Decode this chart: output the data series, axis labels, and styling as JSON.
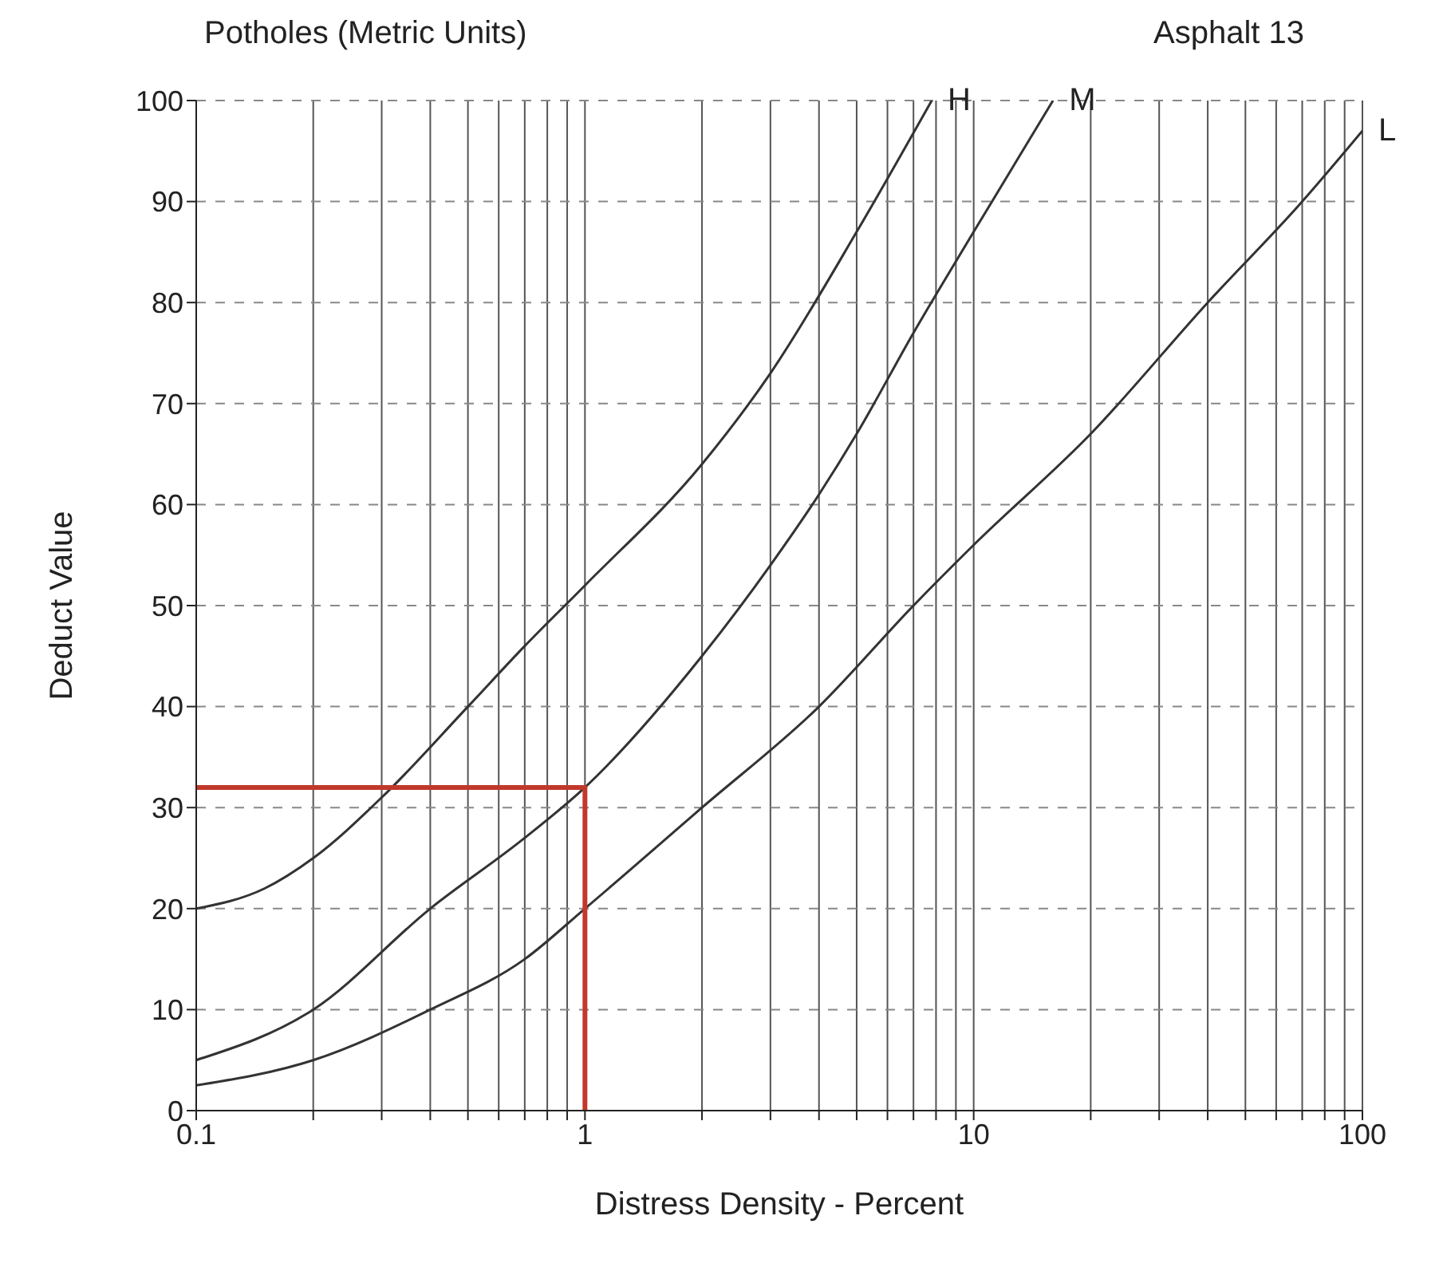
{
  "chart_data": {
    "type": "line",
    "title": "Potholes (Metric Units)",
    "annotations": [
      "Asphalt 13"
    ],
    "xlabel": "Distress Density - Percent",
    "ylabel": "Deduct Value",
    "log": "x",
    "grid": true,
    "marker": "none",
    "line_style": "solid",
    "xlim": [
      0.1,
      100
    ],
    "ylim": [
      0,
      100
    ],
    "xticks": [
      0.1,
      {
        "value": 0.2,
        "label": null
      },
      {
        "value": 0.3,
        "label": null
      },
      {
        "value": 0.4,
        "label": null
      },
      {
        "value": 0.5,
        "label": null
      },
      {
        "value": 0.6,
        "label": null
      },
      {
        "value": 0.7,
        "label": null
      },
      {
        "value": 0.8,
        "label": null
      },
      {
        "value": 0.9,
        "label": null
      },
      1,
      {
        "value": 2,
        "label": null
      },
      {
        "value": 3,
        "label": null
      },
      {
        "value": 4,
        "label": null
      },
      {
        "value": 5,
        "label": null
      },
      {
        "value": 6,
        "label": null
      },
      {
        "value": 7,
        "label": null
      },
      {
        "value": 8,
        "label": null
      },
      {
        "value": 9,
        "label": null
      },
      10,
      {
        "value": 20,
        "label": null
      },
      {
        "value": 30,
        "label": null
      },
      {
        "value": 40,
        "label": null
      },
      {
        "value": 50,
        "label": null
      },
      {
        "value": 60,
        "label": null
      },
      {
        "value": 70,
        "label": null
      },
      {
        "value": 80,
        "label": null
      },
      {
        "value": 90,
        "label": null
      },
      100
    ],
    "yticks": [
      0,
      10,
      20,
      30,
      40,
      50,
      60,
      70,
      80,
      90,
      100
    ],
    "series": [
      {
        "name": "H",
        "color": "#333333",
        "x": [
          0.1,
          0.15,
          0.2,
          0.3,
          0.5,
          0.7,
          1,
          2,
          3,
          5,
          7.8
        ],
        "values": [
          20,
          22,
          25,
          31,
          40,
          46,
          52,
          64,
          73,
          87,
          100
        ]
      },
      {
        "name": "M",
        "color": "#333333",
        "x": [
          0.1,
          0.2,
          0.4,
          0.7,
          1,
          2,
          3,
          4,
          5,
          7,
          10,
          16
        ],
        "values": [
          5,
          10,
          20,
          27,
          32,
          45,
          54,
          61,
          67,
          77,
          87,
          100
        ]
      },
      {
        "name": "L",
        "color": "#333333",
        "x": [
          0.1,
          0.2,
          0.4,
          0.7,
          1,
          2,
          4,
          7,
          10,
          20,
          40,
          70,
          100
        ],
        "values": [
          2.5,
          5,
          10,
          15,
          20,
          30,
          40,
          50,
          56,
          67,
          80,
          90,
          97
        ]
      },
      {
        "color": "#c0392b",
        "x": [
          0.1,
          1,
          1
        ],
        "values": [
          32,
          32,
          0
        ]
      }
    ]
  }
}
